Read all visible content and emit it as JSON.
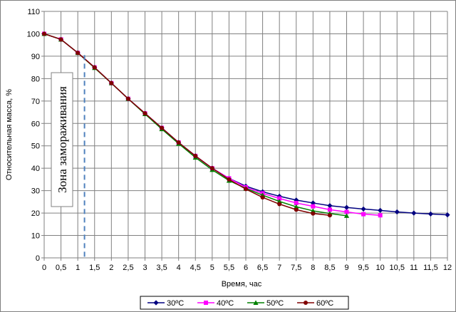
{
  "chart_data": {
    "type": "line",
    "xlabel": "Время, час",
    "ylabel": "Относительная масса, %",
    "xlim": [
      0,
      12
    ],
    "ylim": [
      0,
      110
    ],
    "x_ticks": [
      "0",
      "0,5",
      "1",
      "1,5",
      "2",
      "2,5",
      "3",
      "3,5",
      "4",
      "4,5",
      "5",
      "5,5",
      "6",
      "6,5",
      "7",
      "7,5",
      "8",
      "8,5",
      "9",
      "9,5",
      "10",
      "10,5",
      "11",
      "11,5",
      "12"
    ],
    "y_ticks": [
      "0",
      "10",
      "20",
      "30",
      "40",
      "50",
      "60",
      "70",
      "80",
      "90",
      "100",
      "110"
    ],
    "grid": true,
    "legend_position": "bottom",
    "annotation": {
      "text": "Зона замораживания",
      "x": 1.2
    },
    "series": [
      {
        "name": "30ºC",
        "color": "#000080",
        "marker": "diamond",
        "x": [
          0,
          0.5,
          1,
          1.5,
          2,
          2.5,
          3,
          3.5,
          4,
          4.5,
          5,
          5.5,
          6,
          6.5,
          7,
          7.5,
          8,
          8.5,
          9,
          9.5,
          10,
          10.5,
          11,
          11.5,
          12
        ],
        "values": [
          100,
          97.5,
          91.5,
          85,
          78,
          71,
          64.5,
          58,
          51.5,
          45.5,
          40,
          35.5,
          32,
          29.5,
          27.5,
          25.8,
          24.5,
          23.3,
          22.5,
          21.8,
          21.2,
          20.5,
          20,
          19.6,
          19.2
        ]
      },
      {
        "name": "40ºC",
        "color": "#ff00ff",
        "marker": "square",
        "x": [
          0,
          0.5,
          1,
          1.5,
          2,
          2.5,
          3,
          3.5,
          4,
          4.5,
          5,
          5.5,
          6,
          6.5,
          7,
          7.5,
          8,
          8.5,
          9,
          9.5,
          10
        ],
        "values": [
          100,
          97.5,
          91.5,
          85,
          78,
          71,
          64.5,
          58,
          51.5,
          45.5,
          40,
          35.5,
          31.5,
          28.8,
          26.5,
          24.5,
          23,
          21.5,
          20.5,
          19.5,
          19
        ]
      },
      {
        "name": "50ºC",
        "color": "#008000",
        "marker": "triangle",
        "x": [
          0,
          0.5,
          1,
          1.5,
          2,
          2.5,
          3,
          3.5,
          4,
          4.5,
          5,
          5.5,
          6,
          6.5,
          7,
          7.5,
          8,
          8.5,
          9
        ],
        "values": [
          100,
          97.5,
          91.5,
          84.8,
          78,
          71,
          64.2,
          57.5,
          51,
          44.8,
          39.3,
          34.5,
          31,
          28,
          25.2,
          22.8,
          21,
          19.8,
          18.8
        ]
      },
      {
        "name": "60ºC",
        "color": "#800000",
        "marker": "circle",
        "x": [
          0,
          0.5,
          1,
          1.5,
          2,
          2.5,
          3,
          3.5,
          4,
          4.5,
          5,
          5.5,
          6,
          6.5,
          7,
          7.5,
          8,
          8.5
        ],
        "values": [
          100,
          97.5,
          91.5,
          85,
          78,
          71,
          64.5,
          58,
          51.5,
          45.5,
          40,
          35,
          30.7,
          27,
          24,
          21.5,
          19.8,
          19
        ]
      }
    ]
  }
}
